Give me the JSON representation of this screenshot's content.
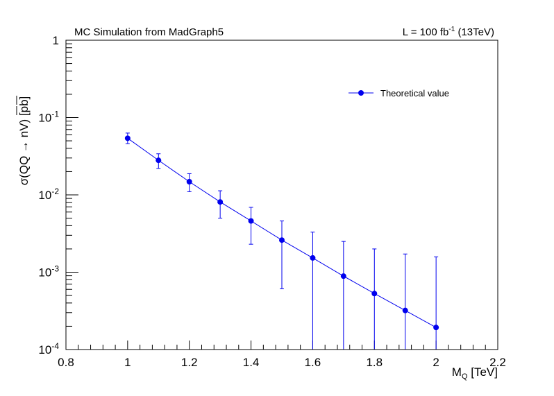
{
  "chart_data": {
    "type": "scatter",
    "title_left": "MC Simulation from MadGraph5",
    "title_right": {
      "prefix": "L = 100 fb",
      "sup": "-1",
      "suffix": " (13TeV)"
    },
    "xlabel": {
      "main": "M",
      "sub": "Q",
      "rest": " [TeV]"
    },
    "ylabel": "σ(QQ → nV) [pb]",
    "xlim": [
      0.8,
      2.2
    ],
    "ylim": [
      0.0001,
      1
    ],
    "yscale": "log",
    "grid": false,
    "legend_position": "top-right",
    "x_ticks": [
      "0.8",
      "1",
      "1.2",
      "1.4",
      "1.6",
      "1.8",
      "2",
      "2.2"
    ],
    "y_ticks": [
      {
        "base": "10",
        "exp": "-4",
        "value": 0.0001
      },
      {
        "base": "10",
        "exp": "-3",
        "value": 0.001
      },
      {
        "base": "10",
        "exp": "-2",
        "value": 0.01
      },
      {
        "base": "10",
        "exp": "-1",
        "value": 0.1
      },
      {
        "base": "1",
        "exp": "",
        "value": 1
      }
    ],
    "series": [
      {
        "name": "Theoretical value",
        "color": "#0000ee",
        "x": [
          1.0,
          1.1,
          1.2,
          1.3,
          1.4,
          1.5,
          1.6,
          1.7,
          1.8,
          1.9,
          2.0
        ],
        "y": [
          0.054,
          0.028,
          0.0148,
          0.0081,
          0.0046,
          0.0026,
          0.00153,
          0.00089,
          0.00053,
          0.00032,
          0.000193
        ],
        "y_err_high": [
          0.063,
          0.034,
          0.0188,
          0.0113,
          0.0069,
          0.0046,
          0.0033,
          0.0025,
          0.002,
          0.00172,
          0.00158
        ],
        "y_err_low": [
          0.046,
          0.022,
          0.011,
          0.005,
          0.0023,
          0.00061,
          0.0001,
          0.0001,
          0.0001,
          0.0001,
          0.0001
        ]
      }
    ]
  }
}
